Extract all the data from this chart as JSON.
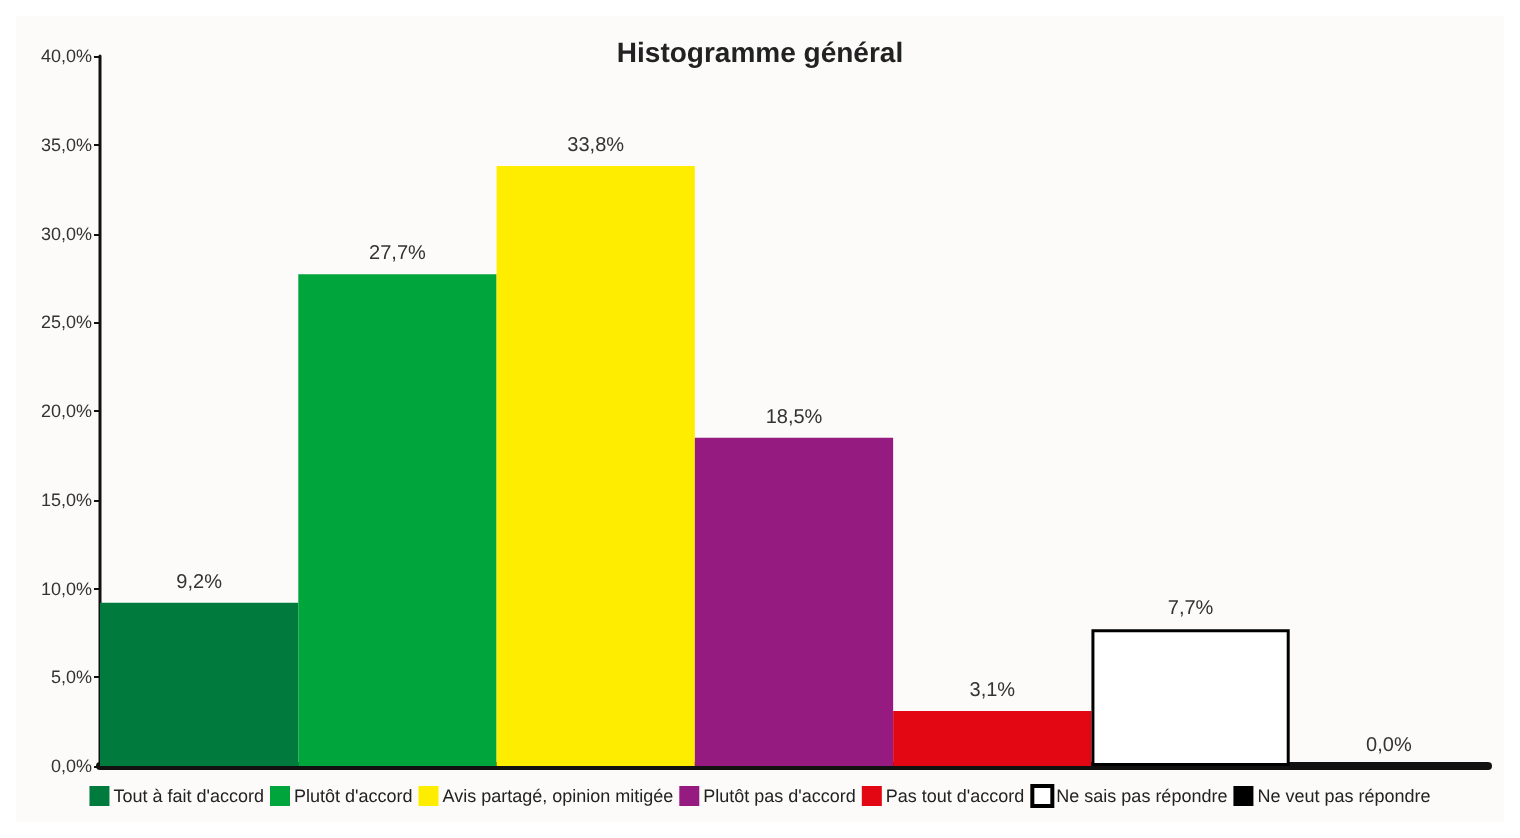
{
  "chart_data": {
    "type": "bar",
    "title": "Histogramme général",
    "categories": [
      null,
      null,
      null,
      null,
      null,
      null,
      null
    ],
    "series": [
      {
        "name": "Tout à fait d'accord",
        "color": "#007a3d",
        "values": [
          9.2,
          null,
          null,
          null,
          null,
          null,
          null
        ],
        "value_labels": [
          "9,2%",
          null,
          null,
          null,
          null,
          null,
          null
        ]
      },
      {
        "name": "Plutôt d'accord",
        "color": "#00a63c",
        "values": [
          null,
          27.7,
          null,
          null,
          null,
          null,
          null
        ],
        "value_labels": [
          null,
          "27,7%",
          null,
          null,
          null,
          null,
          null
        ]
      },
      {
        "name": "Avis partagé, opinion mitigée",
        "color": "#ffed00",
        "values": [
          null,
          null,
          33.8,
          null,
          null,
          null,
          null
        ],
        "value_labels": [
          null,
          null,
          "33,8%",
          null,
          null,
          null,
          null
        ]
      },
      {
        "name": "Plutôt pas d'accord",
        "color": "#951b81",
        "values": [
          null,
          null,
          null,
          18.5,
          null,
          null,
          null
        ],
        "value_labels": [
          null,
          null,
          null,
          "18,5%",
          null,
          null,
          null
        ]
      },
      {
        "name": "Pas tout d'accord",
        "color": "#e30613",
        "values": [
          null,
          null,
          null,
          null,
          3.1,
          null,
          null
        ],
        "value_labels": [
          null,
          null,
          null,
          null,
          "3,1%",
          null,
          null
        ]
      },
      {
        "name": "Ne sais pas répondre",
        "color": "#ffffff",
        "values": [
          null,
          null,
          null,
          null,
          null,
          7.7,
          null
        ],
        "value_labels": [
          null,
          null,
          null,
          null,
          null,
          "7,7%",
          null
        ]
      },
      {
        "name": "Ne veut pas répondre",
        "color": "#000000",
        "values": [
          null,
          null,
          null,
          null,
          null,
          null,
          0.0
        ],
        "value_labels": [
          null,
          null,
          null,
          null,
          null,
          null,
          "0,0%"
        ]
      }
    ],
    "ylim": [
      0,
      40
    ],
    "yticks": [
      {
        "value": 0,
        "label": "0,0%"
      },
      {
        "value": 5,
        "label": "5,0%"
      },
      {
        "value": 10,
        "label": "10,0%"
      },
      {
        "value": 15,
        "label": "15,0%"
      },
      {
        "value": 20,
        "label": "20,0%"
      },
      {
        "value": 25,
        "label": "25,0%"
      },
      {
        "value": 30,
        "label": "30,0%"
      },
      {
        "value": 35,
        "label": "35,0%"
      },
      {
        "value": 40,
        "label": "40,0%"
      }
    ],
    "tick_labels": "y",
    "legend": "bottom",
    "grid": false
  }
}
